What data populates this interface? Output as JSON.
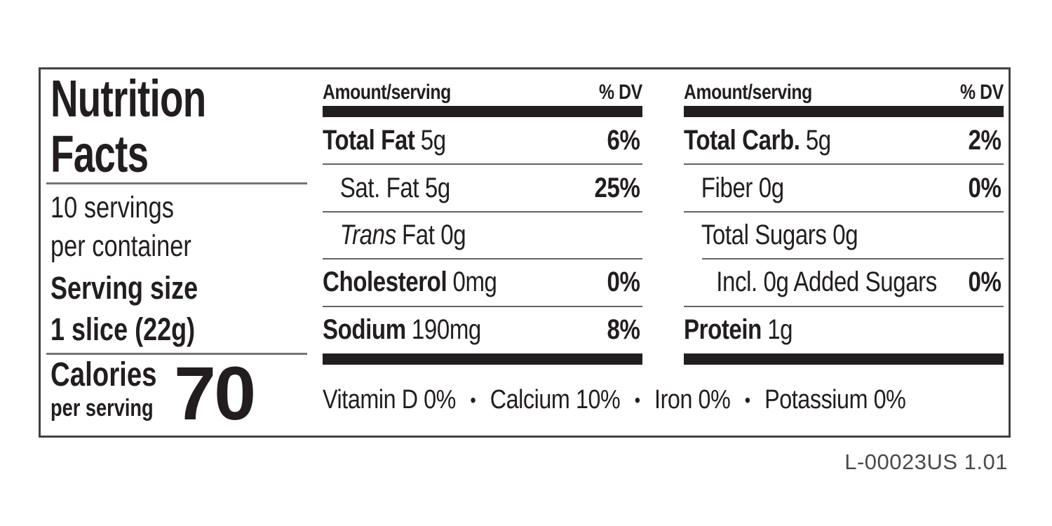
{
  "label": {
    "title_line1": "Nutrition",
    "title_line2": "Facts",
    "servings_line1": "10 servings",
    "servings_line2": "per container",
    "serving_size_label": "Serving size",
    "serving_size_value": "1 slice (22g)",
    "calories_label": "Calories",
    "calories_sublabel": "per serving",
    "calories_value": "70",
    "column_header": {
      "amount": "Amount/serving",
      "dv": "% DV"
    },
    "columns": [
      {
        "rows": [
          {
            "strong": "Total Fat",
            "rest": "5g",
            "dv": "6%"
          },
          {
            "rest": "Sat. Fat 5g",
            "dv": "25%"
          },
          {
            "italic": "Trans",
            "rest": "Fat 0g",
            "dv": ""
          },
          {
            "strong": "Cholesterol",
            "rest": "0mg",
            "dv": "0%"
          },
          {
            "strong": "Sodium",
            "rest": "190mg",
            "dv": "8%"
          }
        ]
      },
      {
        "rows": [
          {
            "strong": "Total Carb.",
            "rest": "5g",
            "dv": "2%"
          },
          {
            "rest": "Fiber 0g",
            "dv": "0%"
          },
          {
            "rest": "Total Sugars 0g",
            "dv": ""
          },
          {
            "rest": "Incl. 0g Added Sugars",
            "dv": "0%"
          },
          {
            "strong": "Protein",
            "rest": "1g",
            "dv": ""
          }
        ]
      }
    ],
    "micronutrients": [
      "Vitamin D 0%",
      "Calcium 10%",
      "Iron 0%",
      "Potassium 0%"
    ],
    "bullet": "•",
    "footer_code": "L-00023US 1.01",
    "colors": {
      "text": "#221e1f",
      "thick_bar": "#221e1f",
      "row_divider": "#636363",
      "panel_divider": "#757575",
      "footer_text": "#4a4a4a",
      "background": "#ffffff"
    }
  }
}
